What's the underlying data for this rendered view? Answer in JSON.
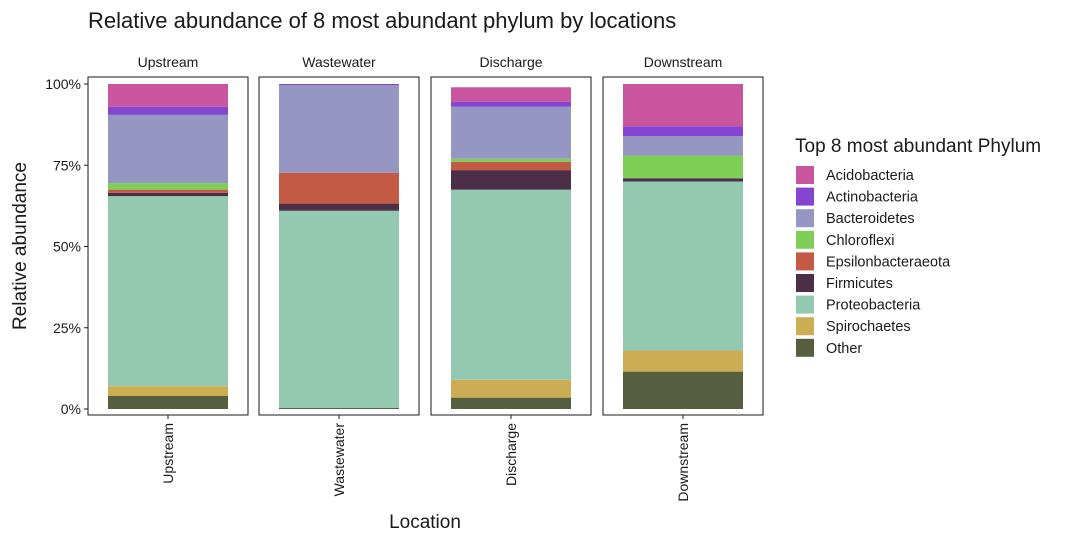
{
  "chart_data": {
    "type": "bar",
    "title": "Relative abundance of 8 most abundant phylum by locations",
    "xlabel": "Location",
    "ylabel": "Relative abundance",
    "ylim": [
      0,
      1
    ],
    "y_ticks": [
      "0%",
      "25%",
      "50%",
      "75%",
      "100%"
    ],
    "facets": [
      "Upstream",
      "Wastewater",
      "Discharge",
      "Downstream"
    ],
    "categories": [
      "Upstream",
      "Wastewater",
      "Discharge",
      "Downstream"
    ],
    "legend": {
      "title": "Top 8 most abundant Phylum",
      "position": "right"
    },
    "grid": false,
    "series": [
      {
        "name": "Acidobacteria",
        "color": "#C9559E",
        "values": [
          0.07,
          0.0,
          0.045,
          0.13
        ]
      },
      {
        "name": "Actinobacteria",
        "color": "#8445D0",
        "values": [
          0.025,
          0.003,
          0.015,
          0.03
        ]
      },
      {
        "name": "Bacteroidetes",
        "color": "#9696C3",
        "values": [
          0.21,
          0.27,
          0.16,
          0.06
        ]
      },
      {
        "name": "Chloroflexi",
        "color": "#7FCE57",
        "values": [
          0.02,
          0.0,
          0.01,
          0.07
        ]
      },
      {
        "name": "Epsilonbacteraeota",
        "color": "#C35A44",
        "values": [
          0.01,
          0.095,
          0.025,
          0.0
        ]
      },
      {
        "name": "Firmicutes",
        "color": "#4C2E49",
        "values": [
          0.01,
          0.022,
          0.06,
          0.01
        ]
      },
      {
        "name": "Proteobacteria",
        "color": "#93C9B1",
        "values": [
          0.585,
          0.607,
          0.585,
          0.52
        ]
      },
      {
        "name": "Spirochaetes",
        "color": "#CCAD53",
        "values": [
          0.03,
          0.0,
          0.055,
          0.065
        ]
      },
      {
        "name": "Other",
        "color": "#555E3E",
        "values": [
          0.04,
          0.003,
          0.035,
          0.115
        ]
      }
    ]
  }
}
